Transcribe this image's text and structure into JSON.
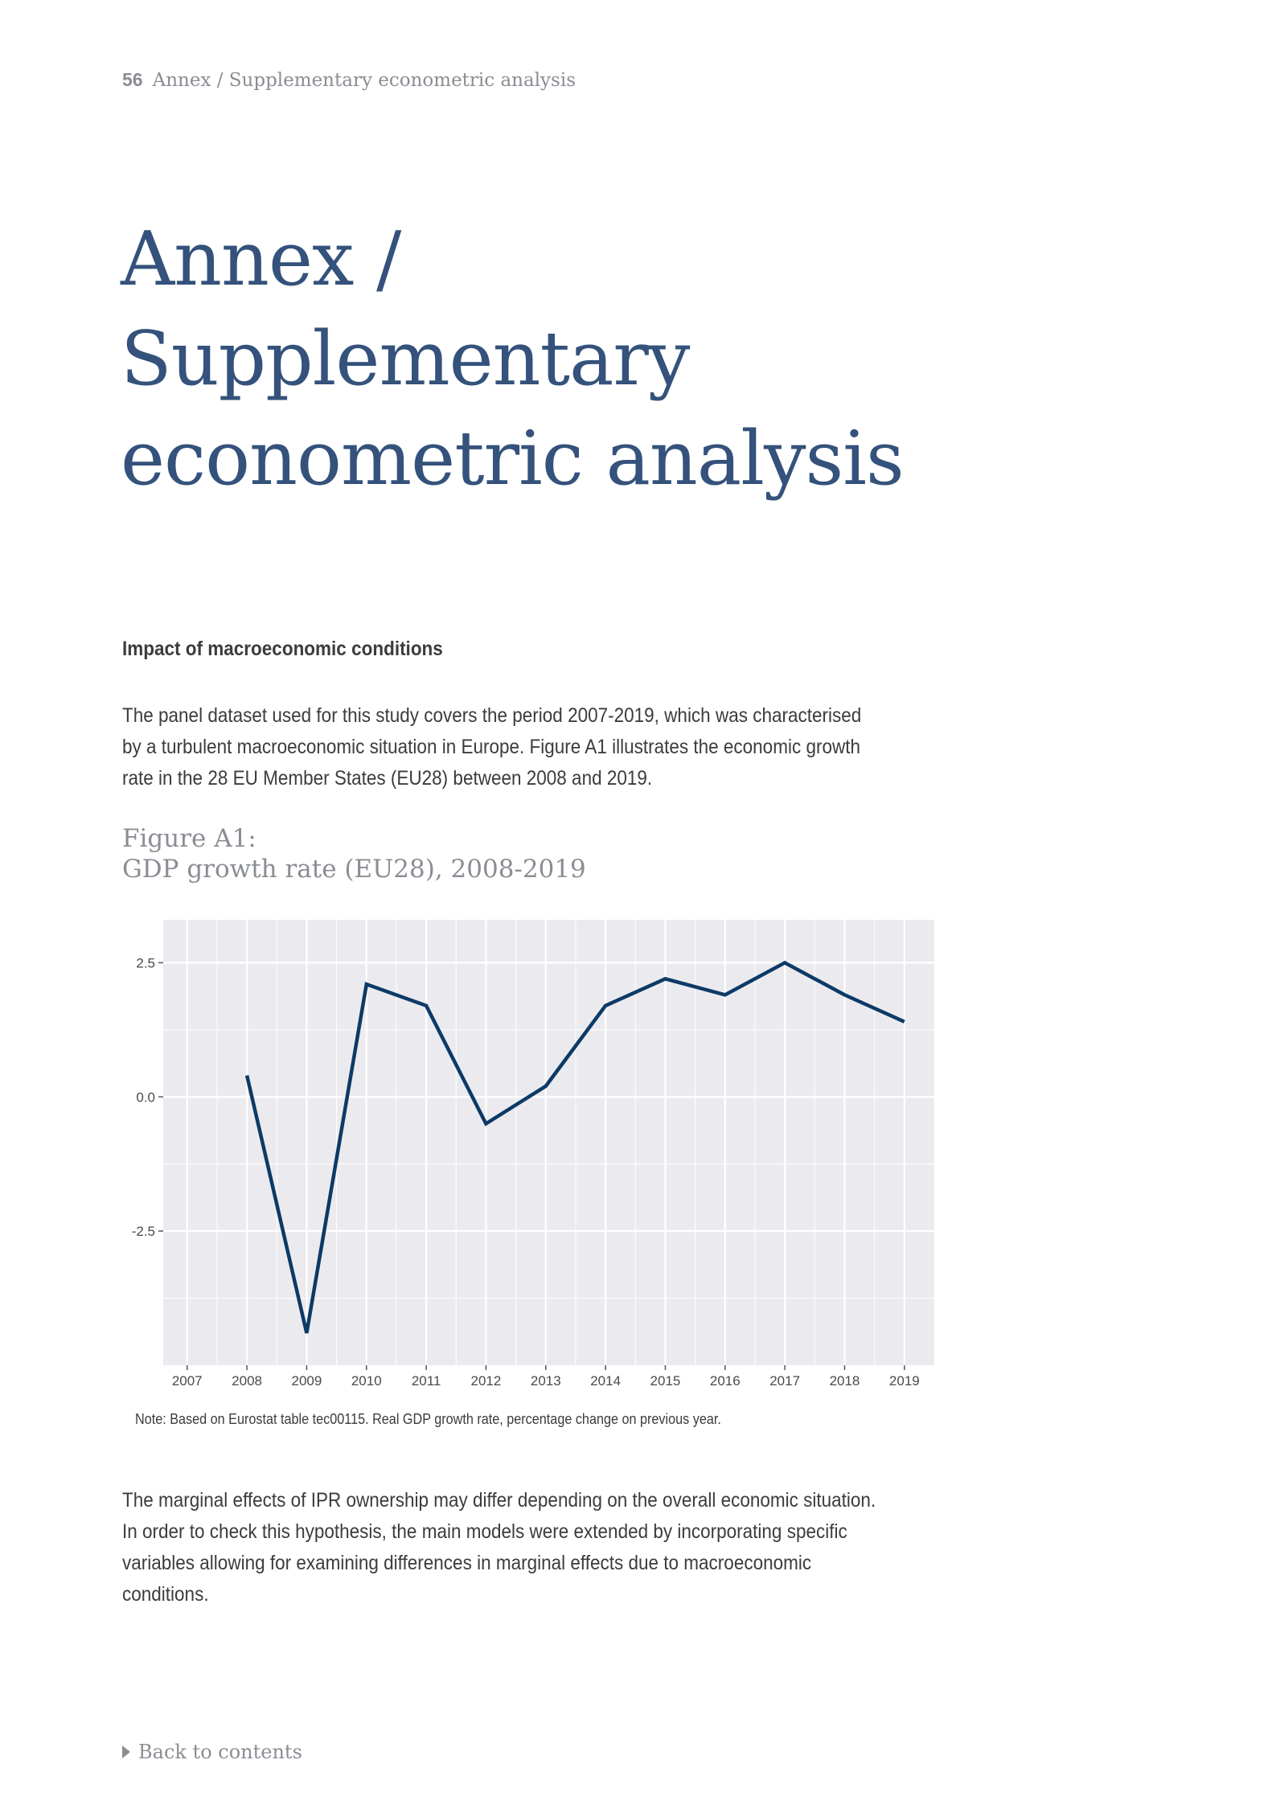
{
  "running_head": {
    "page_number": "56",
    "text": "Annex / Supplementary econometric analysis"
  },
  "title": {
    "line1": "Annex /",
    "line2": "Supplementary",
    "line3": "econometric analysis"
  },
  "section": {
    "heading": "Impact of macroeconomic conditions",
    "paragraph1": "The panel dataset used for this study covers the period 2007-2019, which was characterised by a turbulent macroeconomic situation in Europe. Figure A1 illustrates the economic growth rate in the 28 EU Member States (EU28) between 2008 and 2019.",
    "paragraph2": "The marginal effects of IPR ownership may differ depending on the overall economic situation. In order to check this hypothesis, the main models were extended by incorporating specific variables allowing for examining differences in marginal effects due to macroeconomic conditions."
  },
  "figure": {
    "label": "Figure A1:",
    "title": "GDP growth rate (EU28), 2008-2019",
    "note": "Note: Based on Eurostat table tec00115. Real GDP growth rate, percentage change on previous year."
  },
  "chart_data": {
    "type": "line",
    "x_ticks": [
      "2007",
      "2008",
      "2009",
      "2010",
      "2011",
      "2012",
      "2013",
      "2014",
      "2015",
      "2016",
      "2017",
      "2018",
      "2019"
    ],
    "y_ticks": [
      "2.5",
      "0.0",
      "-2.5"
    ],
    "y_tick_values": [
      2.5,
      0.0,
      -2.5
    ],
    "series": [
      {
        "x": [
          2008,
          2009,
          2010,
          2011,
          2012,
          2013,
          2014,
          2015,
          2016,
          2017,
          2018,
          2019
        ],
        "values": [
          0.4,
          -4.4,
          2.1,
          1.7,
          -0.5,
          0.2,
          1.7,
          2.2,
          1.9,
          2.5,
          1.9,
          1.4
        ],
        "color": "#0d3a66"
      }
    ],
    "xlim": [
      2006.6,
      2019.5
    ],
    "ylim": [
      -5.0,
      3.3
    ],
    "grid": true,
    "panel_background": "#ebebef",
    "grid_color": "#ffffff"
  },
  "back_link": {
    "text": "Back to contents"
  }
}
